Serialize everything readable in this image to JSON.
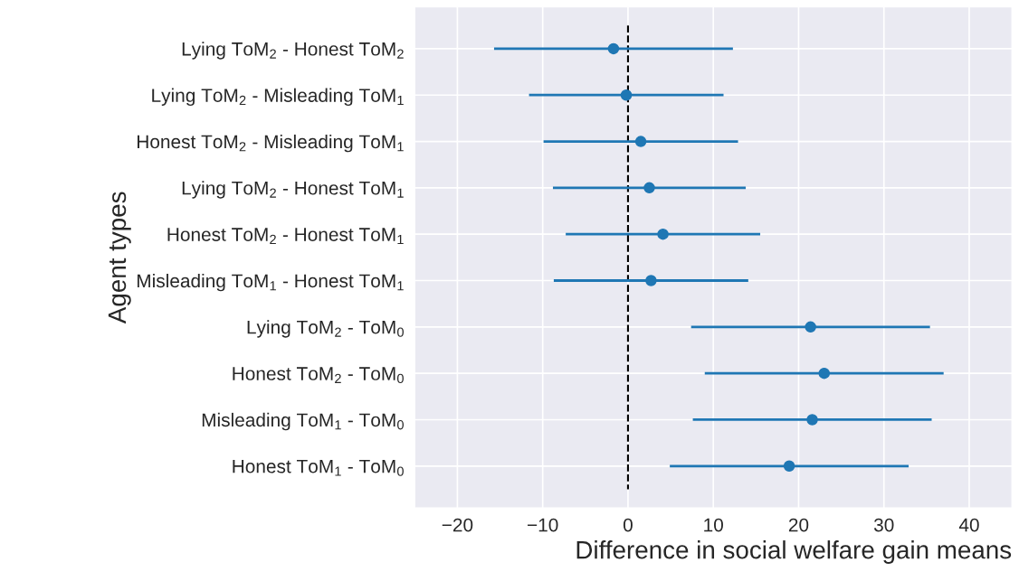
{
  "chart_data": {
    "type": "scatter",
    "orientation": "horizontal",
    "xlabel": "Difference in social welfare gain means",
    "ylabel": "Agent types",
    "categories": [
      "Lying ToM$_{2}$ - Honest ToM$_{2}$",
      "Lying ToM$_{2}$ - Misleading ToM$_{1}$",
      "Honest ToM$_{2}$ - Misleading ToM$_{1}$",
      "Lying ToM$_{2}$ - Honest ToM$_{1}$",
      "Honest ToM$_{2}$ - Honest ToM$_{1}$",
      "Misleading ToM$_{1}$ - Honest ToM$_{1}$",
      "Lying ToM$_{2}$ - ToM$_{0}$",
      "Honest ToM$_{2}$ - ToM$_{0}$",
      "Misleading ToM$_{1}$ - ToM$_{0}$",
      "Honest ToM$_{1}$ - ToM$_{0}$"
    ],
    "values": [
      -1.7,
      -0.2,
      1.5,
      2.5,
      4.1,
      2.7,
      21.4,
      23.0,
      21.6,
      18.9
    ],
    "errors": [
      14.0,
      11.4,
      11.4,
      11.3,
      11.4,
      11.4,
      14.0,
      14.0,
      14.0,
      14.0
    ],
    "color": "#1f77b4",
    "marker": "circle",
    "xlim": [
      -25,
      45
    ],
    "xticks": [
      {
        "value": -20,
        "label": "−20"
      },
      {
        "value": -10,
        "label": "−10"
      },
      0,
      10,
      20,
      30,
      40
    ],
    "ref_lines": [
      {
        "axis": "x",
        "value": 0,
        "color": "#000000",
        "line_style": "dashed"
      }
    ],
    "grid": true
  }
}
